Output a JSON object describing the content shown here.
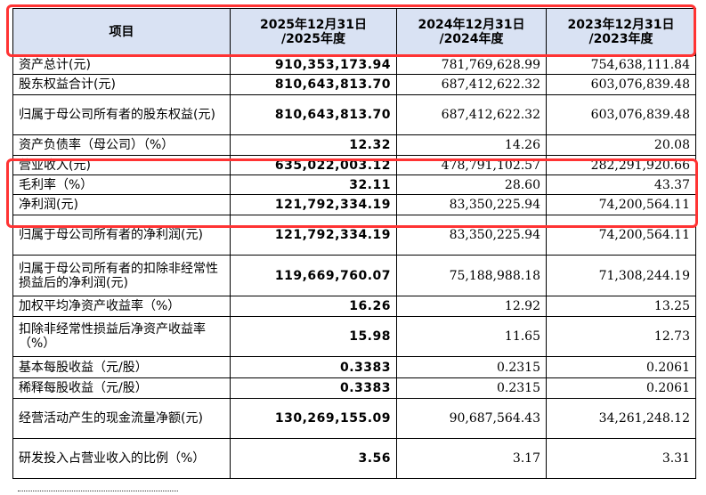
{
  "table": {
    "headers": {
      "item": "项目",
      "y2025_line1": "2025年12月31日",
      "y2025_line2": "/2025年度",
      "y2024_line1": "2024年12月31日",
      "y2024_line2": "/2024年度",
      "y2023_line1": "2023年12月31日",
      "y2023_line2": "/2023年度"
    },
    "rows": [
      {
        "item": "资产总计(元)",
        "v2025": "910,353,173.94",
        "v2024": "781,769,628.99",
        "v2023": "754,638,111.84"
      },
      {
        "item": "股东权益合计(元)",
        "v2025": "810,643,813.70",
        "v2024": "687,412,622.32",
        "v2023": "603,076,839.48"
      },
      {
        "item": "归属于母公司所有者的股东权益(元)",
        "v2025": "810,643,813.70",
        "v2024": "687,412,622.32",
        "v2023": "603,076,839.48"
      },
      {
        "item": "资产负债率（母公司）（%）",
        "v2025": "12.32",
        "v2024": "14.26",
        "v2023": "20.08"
      },
      {
        "item": "营业收入(元)",
        "v2025": "635,022,003.12",
        "v2024": "478,791,102.57",
        "v2023": "282,291,920.66"
      },
      {
        "item": "毛利率（%）",
        "v2025": "32.11",
        "v2024": "28.60",
        "v2023": "43.37"
      },
      {
        "item": "净利润(元)",
        "v2025": "121,792,334.19",
        "v2024": "83,350,225.94",
        "v2023": "74,200,564.11"
      },
      {
        "item": "归属于母公司所有者的净利润(元)",
        "v2025": "121,792,334.19",
        "v2024": "83,350,225.94",
        "v2023": "74,200,564.11"
      },
      {
        "item": "归属于母公司所有者的扣除非经常性损益后的净利润(元)",
        "v2025": "119,669,760.07",
        "v2024": "75,188,988.18",
        "v2023": "71,308,244.19"
      },
      {
        "item": "加权平均净资产收益率（%）",
        "v2025": "16.26",
        "v2024": "12.92",
        "v2023": "13.25"
      },
      {
        "item": "扣除非经常性损益后净资产收益率（%）",
        "v2025": "15.98",
        "v2024": "11.65",
        "v2023": "12.73"
      },
      {
        "item": "基本每股收益（元/股）",
        "v2025": "0.3383",
        "v2024": "0.2315",
        "v2023": "0.2061"
      },
      {
        "item": "稀释每股收益（元/股）",
        "v2025": "0.3383",
        "v2024": "0.2315",
        "v2023": "0.2061"
      },
      {
        "item": "经营活动产生的现金流量净额(元)",
        "v2025": "130,269,155.09",
        "v2024": "90,687,564.43",
        "v2023": "34,261,248.12"
      },
      {
        "item": "研发投入占营业收入的比例（%）",
        "v2025": "3.56",
        "v2024": "3.17",
        "v2023": "3.31"
      }
    ]
  },
  "colors": {
    "header_bg": "#d9e2f3",
    "highlight_border": "#ff3333"
  }
}
